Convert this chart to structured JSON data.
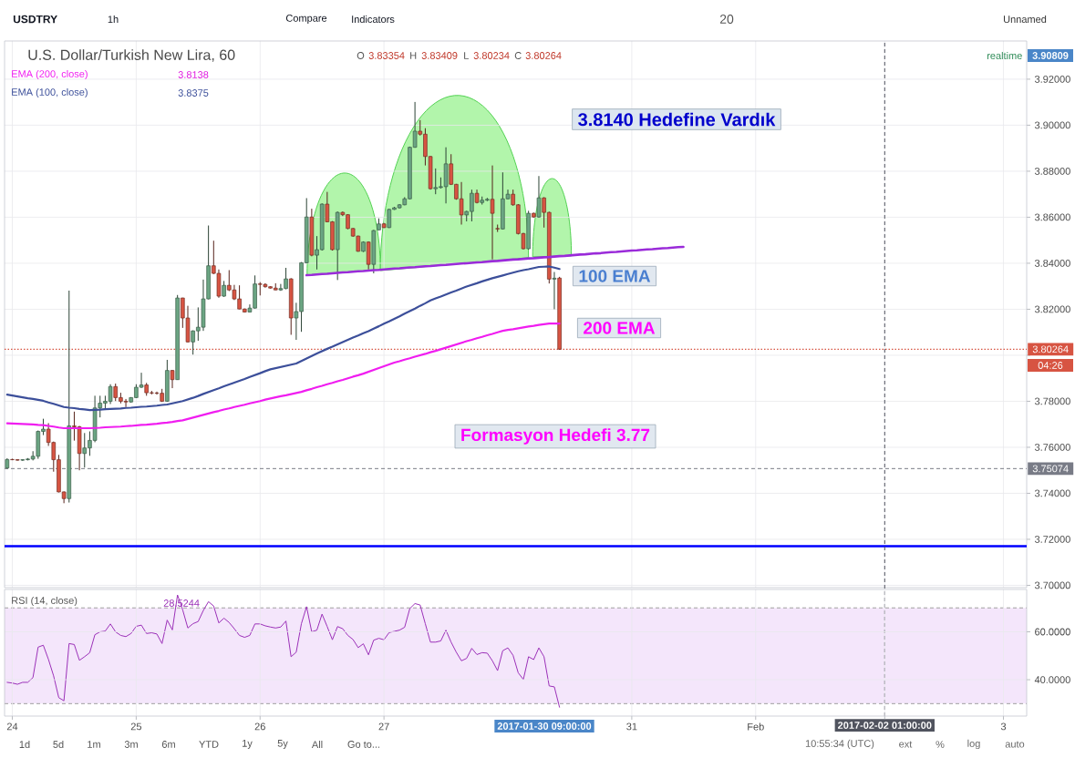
{
  "chart_data": [
    {
      "type": "candlestick",
      "title": "U.S. Dollar/Turkish New Lira, 60",
      "categories": [
        null,
        null,
        null,
        null,
        null,
        null,
        null,
        null,
        null,
        null,
        null,
        null,
        null,
        null,
        null,
        null,
        null,
        null,
        null,
        null,
        null,
        null,
        null,
        null,
        null,
        null,
        null,
        null,
        null,
        null,
        null,
        null,
        null,
        null,
        null,
        null,
        null,
        null,
        null,
        null,
        null,
        null,
        null,
        null,
        null,
        null,
        null,
        null,
        null,
        null,
        null,
        null,
        null,
        null,
        null,
        null,
        null,
        null,
        null,
        null,
        null,
        null,
        null,
        null,
        null,
        null,
        null,
        null,
        null,
        null,
        null,
        null,
        null,
        null,
        null,
        null,
        null,
        null,
        null,
        null,
        null,
        null,
        null,
        null,
        null,
        null,
        null,
        null,
        null,
        null,
        null,
        null,
        null,
        null,
        null,
        null,
        null,
        null,
        null,
        null,
        null,
        null,
        null,
        null,
        null,
        null,
        null,
        null,
        null,
        null,
        null,
        null,
        null,
        null,
        null,
        null,
        null,
        null,
        null,
        null,
        null,
        null,
        null,
        null,
        null,
        null,
        null,
        null,
        null,
        null,
        null,
        null,
        null,
        null,
        null,
        null,
        null,
        null,
        null,
        null,
        null,
        null,
        null,
        null,
        null,
        null,
        null,
        null,
        null,
        null,
        null,
        null,
        null,
        null,
        null,
        null,
        null,
        null,
        null,
        null,
        null,
        null,
        null,
        null,
        null,
        null,
        null,
        null,
        null,
        null,
        null,
        null,
        null,
        null,
        null,
        null,
        null,
        null,
        null,
        null,
        null,
        null,
        null,
        null,
        null,
        null,
        null,
        null,
        null,
        null,
        null,
        null,
        null,
        null,
        null,
        null,
        null,
        null
      ],
      "ohlc": [
        [
          3.751,
          3.7552,
          3.7507,
          3.7547
        ],
        [
          3.7547,
          3.755,
          3.7544,
          3.7546
        ],
        [
          3.7546,
          3.7548,
          3.7542,
          3.7544
        ],
        [
          3.7544,
          3.7548,
          3.7541,
          3.7546
        ],
        [
          3.7546,
          3.7553,
          3.7543,
          3.7549
        ],
        [
          3.7549,
          3.7583,
          3.7543,
          3.7561
        ],
        [
          3.7561,
          3.7673,
          3.755,
          3.7669
        ],
        [
          3.7669,
          3.7724,
          3.7653,
          3.7679
        ],
        [
          3.7679,
          3.7705,
          3.7606,
          3.7621
        ],
        [
          3.7621,
          3.7625,
          3.7494,
          3.7546
        ],
        [
          3.7546,
          3.7567,
          3.7404,
          3.7406
        ],
        [
          3.7406,
          3.7408,
          3.7357,
          3.7377
        ],
        [
          3.7377,
          3.8281,
          3.736,
          3.7693
        ],
        [
          3.7693,
          3.7755,
          3.7629,
          3.7689
        ],
        [
          3.7689,
          3.7693,
          3.75,
          3.7573
        ],
        [
          3.7573,
          3.7662,
          3.7512,
          3.7597
        ],
        [
          3.7597,
          3.7669,
          3.7563,
          3.763
        ],
        [
          3.763,
          3.7824,
          3.7622,
          3.7771
        ],
        [
          3.7771,
          3.7824,
          3.773,
          3.7792
        ],
        [
          3.7792,
          3.7824,
          3.7762,
          3.78
        ],
        [
          3.78,
          3.7874,
          3.7788,
          3.7864
        ],
        [
          3.7864,
          3.7877,
          3.7801,
          3.7816
        ],
        [
          3.7816,
          3.7837,
          3.7791,
          3.78
        ],
        [
          3.78,
          3.781,
          3.7775,
          3.7797
        ],
        [
          3.7797,
          3.7818,
          3.7794,
          3.7816
        ],
        [
          3.7816,
          3.7874,
          3.7814,
          3.7861
        ],
        [
          3.7861,
          3.7924,
          3.7858,
          3.7871
        ],
        [
          3.7871,
          3.788,
          3.7824,
          3.7837
        ],
        [
          3.7837,
          3.7845,
          3.783,
          3.7836
        ],
        [
          3.7836,
          3.7842,
          3.7829,
          3.7835
        ],
        [
          3.7835,
          3.7854,
          3.7797,
          3.78
        ],
        [
          3.78,
          3.798,
          3.7798,
          3.7934
        ],
        [
          3.7934,
          3.7936,
          3.7857,
          3.7894
        ],
        [
          3.7894,
          3.8262,
          3.7894,
          3.8249
        ],
        [
          3.8249,
          3.825,
          3.8119,
          3.8162
        ],
        [
          3.8162,
          3.8215,
          3.8056,
          3.8058
        ],
        [
          3.8058,
          3.8108,
          3.8003,
          3.8106
        ],
        [
          3.8106,
          3.8208,
          3.8063,
          3.8122
        ],
        [
          3.8122,
          3.8329,
          3.8106,
          3.8245
        ],
        [
          3.8245,
          3.8564,
          3.8243,
          3.8389
        ],
        [
          3.8389,
          3.8498,
          3.8353,
          3.8356
        ],
        [
          3.8356,
          3.8373,
          3.825,
          3.8257
        ],
        [
          3.8257,
          3.8323,
          3.8254,
          3.8304
        ],
        [
          3.8304,
          3.837,
          3.8279,
          3.8284
        ],
        [
          3.8284,
          3.8306,
          3.824,
          3.8245
        ],
        [
          3.8245,
          3.8304,
          3.82,
          3.8201
        ],
        [
          3.8201,
          3.8203,
          3.8186,
          3.8188
        ],
        [
          3.8188,
          3.8221,
          3.8187,
          3.8205
        ],
        [
          3.8205,
          3.8347,
          3.8203,
          3.831
        ],
        [
          3.831,
          3.8318,
          3.826,
          3.8308
        ],
        [
          3.8308,
          3.8313,
          3.8294,
          3.8298
        ],
        [
          3.8298,
          3.83,
          3.829,
          3.8292
        ],
        [
          3.8292,
          3.8313,
          3.8283,
          3.8284
        ],
        [
          3.8284,
          3.831,
          3.828,
          3.829
        ],
        [
          3.829,
          3.838,
          3.8287,
          3.8332
        ],
        [
          3.8332,
          3.8335,
          3.8089,
          3.8162
        ],
        [
          3.8162,
          3.8228,
          3.8067,
          3.819
        ],
        [
          3.819,
          3.8405,
          3.8102,
          3.8402
        ],
        [
          3.8402,
          3.8683,
          3.84,
          3.8601
        ],
        [
          3.8601,
          3.8637,
          3.843,
          3.8435
        ],
        [
          3.8435,
          3.8518,
          3.8373,
          3.8459
        ],
        [
          3.8459,
          3.866,
          3.8455,
          3.8657
        ],
        [
          3.8657,
          3.871,
          3.8578,
          3.858
        ],
        [
          3.858,
          3.8583,
          3.8455,
          3.8459
        ],
        [
          3.8459,
          3.8625,
          3.8327,
          3.8621
        ],
        [
          3.8621,
          3.8625,
          3.8605,
          3.8611
        ],
        [
          3.8611,
          3.8613,
          3.8548,
          3.8551
        ],
        [
          3.8551,
          3.8553,
          3.8515,
          3.8518
        ],
        [
          3.8518,
          3.852,
          3.845,
          3.8452
        ],
        [
          3.8452,
          3.8495,
          3.8449,
          3.8492
        ],
        [
          3.8492,
          3.8495,
          3.8373,
          3.8395
        ],
        [
          3.8395,
          3.8545,
          3.8356,
          3.8542
        ],
        [
          3.8545,
          3.8595,
          3.8544,
          3.8571
        ],
        [
          3.8571,
          3.8575,
          3.8553,
          3.8555
        ],
        [
          3.8555,
          3.8637,
          3.8553,
          3.8634
        ],
        [
          3.8634,
          3.8645,
          3.8632,
          3.8641
        ],
        [
          3.8641,
          3.8657,
          3.8638,
          3.8654
        ],
        [
          3.8654,
          3.8687,
          3.8652,
          3.868
        ],
        [
          3.868,
          3.8907,
          3.8678,
          3.8904
        ],
        [
          3.8904,
          3.9101,
          3.8902,
          3.8974
        ],
        [
          3.8974,
          3.9022,
          3.8955,
          3.8961
        ],
        [
          3.8961,
          3.8987,
          3.8825,
          3.8864
        ],
        [
          3.8864,
          3.8866,
          3.872,
          3.8724
        ],
        [
          3.8724,
          3.8812,
          3.87,
          3.8729
        ],
        [
          3.8729,
          3.8773,
          3.8725,
          3.8733
        ],
        [
          3.8733,
          3.8904,
          3.866,
          3.8832
        ],
        [
          3.8832,
          3.8874,
          3.874,
          3.8743
        ],
        [
          3.8743,
          3.8745,
          3.8676,
          3.868
        ],
        [
          3.868,
          3.8753,
          3.8568,
          3.861
        ],
        [
          3.861,
          3.8628,
          3.8582,
          3.8625
        ],
        [
          3.8625,
          3.872,
          3.8582,
          3.8704
        ],
        [
          3.8704,
          3.872,
          3.866,
          3.8664
        ],
        [
          3.8664,
          3.869,
          3.8655,
          3.8674
        ],
        [
          3.8674,
          3.8684,
          3.867,
          3.8678
        ],
        [
          3.8678,
          3.8825,
          3.8417,
          3.8617
        ],
        [
          3.8551,
          3.8568,
          3.8536,
          3.8549
        ],
        [
          3.8549,
          3.8795,
          3.8547,
          3.868
        ],
        [
          3.868,
          3.872,
          3.8678,
          3.87
        ],
        [
          3.87,
          3.872,
          3.865,
          3.8654
        ],
        [
          3.8654,
          3.8657,
          3.8525,
          3.8529
        ],
        [
          3.8529,
          3.8532,
          3.846,
          3.8463
        ],
        [
          3.8463,
          3.8628,
          3.846,
          3.8617
        ],
        [
          3.8617,
          3.862,
          3.8598,
          3.8601
        ],
        [
          3.8601,
          3.8779,
          3.8598,
          3.8684
        ],
        [
          3.8684,
          3.8687,
          3.8555,
          3.8621
        ],
        [
          3.8621,
          3.8624,
          3.8312,
          3.8331
        ],
        [
          3.8331,
          3.8362,
          3.82,
          3.8335
        ],
        [
          3.83354,
          3.83409,
          3.80234,
          3.80264
        ],
        null,
        null,
        null,
        null,
        null,
        null,
        null,
        null,
        null,
        null,
        null,
        null,
        null,
        null,
        null,
        null,
        null,
        null,
        null,
        null,
        null,
        null,
        null,
        null,
        null,
        null,
        null,
        null,
        null,
        null,
        null,
        null,
        null,
        null,
        null,
        null,
        null,
        null,
        null,
        null,
        null,
        null,
        null,
        null,
        null,
        null,
        null,
        null,
        null,
        null,
        null,
        null,
        null,
        null,
        null,
        null,
        null,
        null,
        null,
        null,
        null,
        null,
        null,
        null,
        null,
        null,
        null,
        null,
        null,
        null,
        null,
        null,
        null,
        null,
        null,
        null,
        null,
        null,
        null,
        null,
        null,
        null,
        null,
        null,
        null,
        null,
        null,
        null,
        null,
        null
      ],
      "colors": [
        "#6ba583",
        "#d75442",
        "#d75442",
        "#6ba583",
        "#6ba583",
        "#6ba583",
        "#6ba583",
        "#6ba583",
        "#d75442",
        "#d75442",
        "#d75442",
        "#d75442",
        "#6ba583",
        "#d75442",
        "#d75442",
        "#6ba583",
        "#6ba583",
        "#6ba583",
        "#6ba583",
        "#6ba583",
        "#6ba583",
        "#d75442",
        "#d75442",
        "#d75442",
        "#6ba583",
        "#6ba583",
        "#6ba583",
        "#d75442",
        "#d75442",
        "#d75442",
        "#d75442",
        "#6ba583",
        "#d75442",
        "#6ba583",
        "#d75442",
        "#d75442",
        "#6ba583",
        "#6ba583",
        "#6ba583",
        "#6ba583",
        "#d75442",
        "#d75442",
        "#6ba583",
        "#d75442",
        "#d75442",
        "#d75442",
        "#d75442",
        "#6ba583",
        "#6ba583",
        "#d75442",
        "#d75442",
        "#d75442",
        "#d75442",
        "#6ba583",
        "#6ba583",
        "#d75442",
        "#6ba583",
        "#6ba583",
        "#6ba583",
        "#d75442",
        "#6ba583",
        "#6ba583",
        "#d75442",
        "#d75442",
        "#6ba583",
        "#d75442",
        "#d75442",
        "#d75442",
        "#d75442",
        "#6ba583",
        "#d75442",
        "#6ba583",
        "#6ba583",
        "#d75442",
        "#6ba583",
        "#6ba583",
        "#6ba583",
        "#6ba583",
        "#6ba583",
        "#6ba583",
        "#d75442",
        "#d75442",
        "#d75442",
        "#6ba583",
        "#6ba583",
        "#6ba583",
        "#d75442",
        "#d75442",
        "#d75442",
        "#6ba583",
        "#6ba583",
        "#d75442",
        "#6ba583",
        "#6ba583",
        "#d75442",
        "#d75442",
        "#6ba583",
        "#6ba583",
        "#d75442",
        "#d75442",
        "#d75442",
        "#6ba583",
        "#d75442",
        "#6ba583",
        "#d75442",
        "#d75442",
        "#6ba583",
        "#d75442",
        null,
        null,
        null,
        null,
        null,
        null,
        null,
        null,
        null,
        null,
        null,
        null,
        null,
        null,
        null,
        null,
        null,
        null,
        null,
        null,
        null,
        null,
        null,
        null,
        null,
        null,
        null,
        null,
        null,
        null,
        null,
        null,
        null,
        null,
        null,
        null,
        null,
        null,
        null,
        null,
        null,
        null,
        null,
        null,
        null,
        null,
        null,
        null,
        null,
        null,
        null,
        null,
        null,
        null,
        null,
        null,
        null,
        null,
        null,
        null,
        null,
        null,
        null,
        null,
        null,
        null,
        null,
        null,
        null,
        null,
        null,
        null,
        null,
        null,
        null,
        null,
        null,
        null,
        null,
        null,
        null,
        null,
        null,
        null,
        null,
        null,
        null,
        null,
        null,
        null
      ],
      "series": [
        {
          "name": "EMA (200, close)",
          "type": "line",
          "color": "#f01df0",
          "values": [
            3.7704,
            3.7703,
            3.7702,
            3.7701,
            3.77,
            3.7699,
            3.7697,
            3.7696,
            3.7693,
            3.769,
            3.7686,
            3.7683,
            3.7683,
            3.7683,
            3.7683,
            3.7683,
            3.7683,
            3.7684,
            3.7685,
            3.7687,
            3.7688,
            3.7689,
            3.769,
            3.7692,
            3.7693,
            3.7695,
            3.7697,
            3.7698,
            3.77,
            3.7702,
            3.7705,
            3.7707,
            3.771,
            3.7714,
            3.7717,
            3.7723,
            3.7729,
            3.7735,
            3.7741,
            3.7747,
            3.7753,
            3.7758,
            3.7764,
            3.7769,
            3.7775,
            3.778,
            3.7785,
            3.7791,
            3.7796,
            3.7801,
            3.7807,
            3.7812,
            3.7817,
            3.7822,
            3.7826,
            3.7831,
            3.7836,
            3.7841,
            3.7848,
            3.7854,
            3.7861,
            3.7867,
            3.7874,
            3.788,
            3.7887,
            3.7893,
            3.79,
            3.7907,
            3.7913,
            3.792,
            3.7928,
            3.7936,
            3.7944,
            3.7952,
            3.796,
            3.7968,
            3.7974,
            3.7981,
            3.7987,
            3.7994,
            3.8,
            3.8006,
            3.8013,
            3.8019,
            3.8026,
            3.8033,
            3.804,
            3.8047,
            3.8054,
            3.8061,
            3.8067,
            3.8074,
            3.808,
            3.8087,
            3.8093,
            3.81,
            3.8106,
            3.811,
            3.8113,
            3.8117,
            3.8121,
            3.8125,
            3.8128,
            3.8132,
            3.8135,
            3.8138,
            3.8138,
            3.8138,
            null,
            null,
            null,
            null,
            null,
            null,
            null,
            null,
            null,
            null,
            null,
            null,
            null,
            null,
            null,
            null,
            null,
            null,
            null,
            null,
            null,
            null,
            null,
            null,
            null,
            null,
            null,
            null,
            null,
            null,
            null,
            null,
            null,
            null,
            null,
            null,
            null,
            null,
            null,
            null,
            null,
            null,
            null,
            null,
            null,
            null,
            null,
            null,
            null,
            null,
            null,
            null,
            null,
            null,
            null,
            null,
            null,
            null,
            null,
            null,
            null,
            null,
            null,
            null,
            null,
            null,
            null,
            null,
            null,
            null,
            null,
            null,
            null,
            null,
            null,
            null,
            null,
            null,
            null,
            null,
            null,
            null,
            null,
            null,
            null,
            null,
            null,
            null,
            null,
            null
          ]
        },
        {
          "name": "EMA (100, close)",
          "type": "line",
          "color": "#3c4f9a",
          "values": [
            3.7829,
            3.7825,
            3.7821,
            3.7817,
            3.7813,
            3.781,
            3.7806,
            3.7802,
            3.7795,
            3.7789,
            3.7782,
            3.7775,
            3.7772,
            3.777,
            3.7767,
            3.7765,
            3.7762,
            3.7763,
            3.7764,
            3.7766,
            3.7767,
            3.7768,
            3.7769,
            3.7771,
            3.7772,
            3.7774,
            3.7776,
            3.7777,
            3.7779,
            3.7781,
            3.7784,
            3.7786,
            3.7791,
            3.7796,
            3.7801,
            3.7808,
            3.7815,
            3.7823,
            3.7832,
            3.784,
            3.7848,
            3.7856,
            3.7865,
            3.7873,
            3.7881,
            3.7889,
            3.7897,
            3.7906,
            3.7914,
            3.7922,
            3.7931,
            3.7939,
            3.7944,
            3.7949,
            3.7954,
            3.7959,
            3.7964,
            3.7975,
            3.7986,
            3.7997,
            3.8008,
            3.8018,
            3.8028,
            3.8037,
            3.8047,
            3.8057,
            3.8067,
            3.8077,
            3.8086,
            3.8096,
            3.8105,
            3.8116,
            3.8126,
            3.8137,
            3.8147,
            3.8158,
            3.8169,
            3.8181,
            3.8192,
            3.8203,
            3.8215,
            3.8226,
            3.8238,
            3.8247,
            3.8255,
            3.8264,
            3.8273,
            3.8281,
            3.829,
            3.8299,
            3.8306,
            3.8313,
            3.8321,
            3.8328,
            3.8335,
            3.8341,
            3.8347,
            3.8353,
            3.8359,
            3.8365,
            3.837,
            3.8374,
            3.8379,
            3.8384,
            3.8385,
            3.8386,
            3.8381,
            3.8375,
            null,
            null,
            null,
            null,
            null,
            null,
            null,
            null,
            null,
            null,
            null,
            null,
            null,
            null,
            null,
            null,
            null,
            null,
            null,
            null,
            null,
            null,
            null,
            null,
            null,
            null,
            null,
            null,
            null,
            null,
            null,
            null,
            null,
            null,
            null,
            null,
            null,
            null,
            null,
            null,
            null,
            null,
            null,
            null,
            null,
            null,
            null,
            null,
            null,
            null,
            null,
            null,
            null,
            null,
            null,
            null,
            null,
            null,
            null,
            null,
            null,
            null,
            null,
            null,
            null,
            null,
            null,
            null,
            null,
            null,
            null,
            null,
            null,
            null,
            null,
            null,
            null,
            null,
            null,
            null,
            null,
            null,
            null,
            null,
            null,
            null,
            null,
            null,
            null,
            null
          ]
        },
        {
          "type": "line",
          "color": "#9a2bd9",
          "values": [
            null,
            null,
            null,
            null,
            null,
            null,
            null,
            null,
            null,
            null,
            null,
            null,
            null,
            null,
            null,
            null,
            null,
            null,
            null,
            null,
            null,
            null,
            null,
            null,
            null,
            null,
            null,
            null,
            null,
            null,
            null,
            null,
            null,
            null,
            null,
            null,
            null,
            null,
            null,
            null,
            null,
            null,
            null,
            null,
            null,
            null,
            null,
            null,
            null,
            null,
            null,
            null,
            null,
            null,
            null,
            null,
            null,
            null,
            3.8348,
            3.8349,
            3.8351,
            3.8353,
            3.8354,
            3.8356,
            3.8358,
            3.836,
            3.8361,
            3.8363,
            3.8365,
            3.8366,
            3.8368,
            3.837,
            3.8371,
            3.8373,
            3.8375,
            3.8377,
            3.8378,
            3.838,
            3.8382,
            3.8383,
            3.8385,
            3.8387,
            3.8388,
            3.839,
            3.8392,
            3.8393,
            3.8395,
            3.8397,
            3.8399,
            3.84,
            3.8402,
            3.8404,
            3.8405,
            3.8407,
            3.8409,
            3.841,
            3.8412,
            3.8414,
            3.8416,
            3.8417,
            3.8419,
            3.8421,
            3.8422,
            3.8424,
            3.8426,
            3.8427,
            3.8429,
            3.8431,
            3.8432,
            3.8434,
            3.8436,
            3.8438,
            3.8439,
            3.8441,
            3.8443,
            3.8444,
            3.8446,
            3.8448,
            3.8449,
            3.8451,
            3.8453,
            3.8455,
            3.8456,
            3.8458,
            3.846,
            3.8461,
            3.8463,
            3.8465,
            3.8466,
            3.8468,
            3.847,
            3.8471,
            null,
            null,
            null,
            null,
            null,
            null,
            null,
            null,
            null,
            null,
            null,
            null,
            null,
            null,
            null,
            null,
            null,
            null,
            null,
            null,
            null,
            null,
            null,
            null,
            null,
            null,
            null,
            null,
            null,
            null,
            null,
            null,
            null,
            null,
            null,
            null,
            null,
            null,
            null,
            null,
            null,
            null,
            null,
            null,
            null,
            null,
            null,
            null,
            null,
            null,
            null,
            null,
            null,
            null,
            null,
            null,
            null,
            null,
            null,
            null,
            null,
            null,
            null,
            null,
            null,
            null
          ]
        }
      ],
      "ylim": [
        3.699,
        3.9366
      ],
      "yticks": [
        {
          "value": 3.7,
          "label": "3.70000"
        },
        {
          "value": 3.72,
          "label": "3.72000"
        },
        {
          "value": 3.74,
          "label": "3.74000"
        },
        {
          "value": 3.76,
          "label": "3.76000"
        },
        {
          "value": 3.78,
          "label": "3.78000"
        },
        {
          "value": 3.8,
          "label": null
        },
        {
          "value": 3.82,
          "label": "3.82000"
        },
        {
          "value": 3.84,
          "label": "3.84000"
        },
        {
          "value": 3.86,
          "label": "3.86000"
        },
        {
          "value": 3.88,
          "label": "3.88000"
        },
        {
          "value": 3.9,
          "label": "3.90000"
        },
        {
          "value": 3.92,
          "label": "3.92000"
        }
      ],
      "grid": true,
      "legend": "top left",
      "ref_lines": [
        {
          "axis": "y",
          "value": 3.717,
          "color": "#0000ff"
        },
        {
          "axis": "y",
          "value": 3.80264,
          "label": "3.80264",
          "color": "#d75442",
          "line_style": "dotted"
        },
        {
          "axis": "y",
          "value": 3.75074,
          "label": "3.75074",
          "color": "#787b86",
          "line_style": "dashed"
        }
      ],
      "annotations": [
        "USDTRY",
        "1h",
        "Compare",
        "Indicators",
        "20",
        "Unnamed",
        "O",
        "3.83354",
        "H",
        "3.83409",
        "L",
        "3.80234",
        "C",
        "3.80264",
        "3.8138",
        "3.8375",
        "realtime",
        "3.90809",
        "04:26",
        "3.8140 Hedefine Vardık",
        "100 EMA",
        "200 EMA",
        "Formasyon Hedefi 3.77"
      ]
    },
    {
      "type": "line",
      "categories": [
        null,
        "24",
        null,
        null,
        null,
        null,
        null,
        null,
        null,
        null,
        null,
        null,
        null,
        null,
        null,
        null,
        null,
        null,
        null,
        null,
        null,
        null,
        null,
        null,
        null,
        "25",
        null,
        null,
        null,
        null,
        null,
        null,
        null,
        null,
        null,
        null,
        null,
        null,
        null,
        null,
        null,
        null,
        null,
        null,
        null,
        null,
        null,
        null,
        null,
        "26",
        null,
        null,
        null,
        null,
        null,
        null,
        null,
        null,
        null,
        null,
        null,
        null,
        null,
        null,
        null,
        null,
        null,
        null,
        null,
        null,
        null,
        null,
        null,
        "27",
        null,
        null,
        null,
        null,
        null,
        null,
        null,
        null,
        null,
        null,
        null,
        null,
        null,
        null,
        null,
        null,
        null,
        null,
        null,
        null,
        null,
        null,
        null,
        null,
        null,
        null,
        null,
        null,
        null,
        null,
        null,
        null,
        null,
        null,
        null,
        null,
        null,
        null,
        null,
        null,
        null,
        null,
        null,
        null,
        null,
        null,
        null,
        "31",
        null,
        null,
        null,
        null,
        null,
        null,
        null,
        null,
        null,
        null,
        null,
        null,
        null,
        null,
        null,
        null,
        null,
        null,
        null,
        null,
        null,
        null,
        null,
        "Feb",
        null,
        null,
        null,
        null,
        null,
        null,
        null,
        null,
        null,
        null,
        null,
        null,
        null,
        null,
        null,
        null,
        null,
        null,
        null,
        null,
        null,
        null,
        null,
        null,
        "2017-02-02 01:00:00",
        null,
        null,
        null,
        null,
        null,
        null,
        null,
        null,
        null,
        null,
        null,
        null,
        null,
        null,
        null,
        null,
        null,
        null,
        null,
        null,
        null,
        null,
        "3",
        null,
        null,
        null,
        null
      ],
      "series": [
        {
          "name": "RSI (14, close)",
          "color": "#9b30b8",
          "values": [
            38.9,
            38.6,
            38.1,
            38.9,
            38.9,
            40.9,
            53.6,
            54.4,
            48.5,
            41.6,
            32.5,
            31.2,
            55.1,
            54.7,
            48.1,
            49.6,
            51.3,
            58.8,
            60.0,
            60.3,
            63.3,
            60.0,
            58.5,
            58.0,
            59.3,
            62.3,
            62.8,
            59.3,
            59.6,
            59.1,
            55.1,
            64.9,
            60.8,
            75.4,
            69.2,
            61.6,
            63.4,
            64.3,
            68.9,
            72.6,
            70.8,
            63.7,
            65.7,
            63.9,
            61.3,
            58.5,
            57.7,
            58.5,
            63.3,
            63.3,
            62.5,
            62.0,
            61.6,
            62.0,
            64.5,
            49.6,
            51.5,
            63.4,
            70.5,
            60.0,
            60.7,
            67.4,
            62.2,
            56.7,
            62.2,
            61.3,
            58.5,
            56.8,
            53.4,
            55.0,
            50.4,
            56.5,
            57.3,
            56.7,
            59.7,
            60.2,
            60.7,
            61.9,
            69.7,
            71.8,
            71.2,
            63.4,
            55.7,
            55.7,
            56.2,
            60.7,
            55.7,
            51.5,
            47.9,
            48.9,
            53.1,
            50.5,
            51.3,
            51.1,
            47.9,
            43.8,
            52.1,
            53.3,
            50.2,
            42.9,
            40.1,
            49.6,
            48.4,
            53.3,
            49.6,
            37.4,
            37.0,
            28.5,
            null,
            null,
            null,
            null,
            null,
            null,
            null,
            null,
            null,
            null,
            null,
            null,
            null,
            null,
            null,
            null,
            null,
            null,
            null,
            null,
            null,
            null,
            null,
            null,
            null,
            null,
            null,
            null,
            null,
            null,
            null,
            null,
            null,
            null,
            null,
            null,
            null,
            null,
            null,
            null,
            null,
            null,
            null,
            null,
            null,
            null,
            null,
            null,
            null,
            null,
            null,
            null,
            null,
            null,
            null,
            null,
            null,
            null,
            null,
            null,
            null,
            null,
            null,
            null,
            null,
            null,
            null,
            null,
            null,
            null,
            null,
            null,
            null,
            null,
            null,
            null,
            null,
            null,
            null,
            null,
            null,
            null,
            null,
            null,
            null,
            null,
            null,
            null,
            null,
            null
          ]
        }
      ],
      "ylim": [
        24.8,
        77.7
      ],
      "yticks": [
        {
          "value": 40,
          "label": "40.0000"
        },
        {
          "value": 60,
          "label": "60.0000"
        }
      ],
      "grid": true,
      "legend": "top left",
      "bands": [
        {
          "axis": "y",
          "from": 30,
          "to": 70,
          "color": "#f4e6fb"
        }
      ],
      "ref_lines": [
        {
          "axis": "y",
          "value": 70,
          "color": "#a0a0a0",
          "line_style": "dashed"
        },
        {
          "axis": "y",
          "value": 30,
          "color": "#a0a0a0",
          "line_style": "dashed"
        },
        {
          "axis": "x",
          "value": "2017-02-02 01:00:00",
          "color": "#50535e",
          "line_style": "dashed"
        }
      ],
      "annotations": [
        "28.5244",
        "2017-01-30 09:00:00",
        "1d",
        "5d",
        "1m",
        "3m",
        "6m",
        "YTD",
        "1y",
        "5y",
        "All",
        "Go to...",
        "10:55:34 (UTC)",
        "ext",
        "%",
        "log",
        "auto"
      ]
    }
  ]
}
